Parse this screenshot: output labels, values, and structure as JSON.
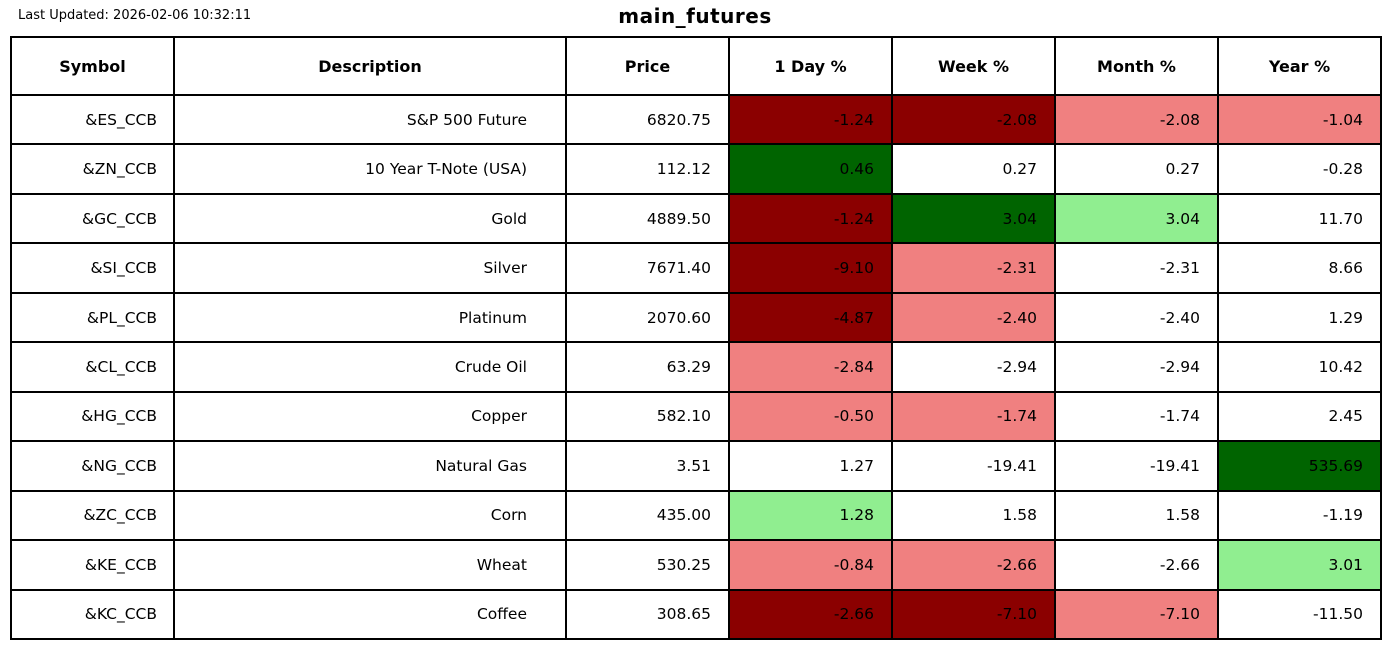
{
  "chart_data": {
    "type": "table",
    "title": "main_futures",
    "last_updated": "Last Updated: 2026-02-06 10:32:11",
    "columns": [
      "Symbol",
      "Description",
      "Price",
      "1 Day %",
      "Week %",
      "Month %",
      "Year %"
    ],
    "colors": {
      "strong_negative": "#8B0000",
      "mild_negative": "#F08080",
      "neutral": "#FFFFFF",
      "mild_positive": "#90EE90",
      "strong_positive": "#006400"
    },
    "rows": [
      {
        "symbol": "&ES_CCB",
        "description": "S&P 500 Future",
        "price": "6820.75",
        "pcts": [
          {
            "v": "-1.24",
            "c": "strong_negative"
          },
          {
            "v": "-2.08",
            "c": "strong_negative"
          },
          {
            "v": "-2.08",
            "c": "mild_negative"
          },
          {
            "v": "-1.04",
            "c": "mild_negative"
          }
        ]
      },
      {
        "symbol": "&ZN_CCB",
        "description": "10 Year T-Note (USA)",
        "price": "112.12",
        "pcts": [
          {
            "v": "0.46",
            "c": "strong_positive"
          },
          {
            "v": "0.27",
            "c": "neutral"
          },
          {
            "v": "0.27",
            "c": "neutral"
          },
          {
            "v": "-0.28",
            "c": "neutral"
          }
        ]
      },
      {
        "symbol": "&GC_CCB",
        "description": "Gold",
        "price": "4889.50",
        "pcts": [
          {
            "v": "-1.24",
            "c": "strong_negative"
          },
          {
            "v": "3.04",
            "c": "strong_positive"
          },
          {
            "v": "3.04",
            "c": "mild_positive"
          },
          {
            "v": "11.70",
            "c": "neutral"
          }
        ]
      },
      {
        "symbol": "&SI_CCB",
        "description": "Silver",
        "price": "7671.40",
        "pcts": [
          {
            "v": "-9.10",
            "c": "strong_negative"
          },
          {
            "v": "-2.31",
            "c": "mild_negative"
          },
          {
            "v": "-2.31",
            "c": "neutral"
          },
          {
            "v": "8.66",
            "c": "neutral"
          }
        ]
      },
      {
        "symbol": "&PL_CCB",
        "description": "Platinum",
        "price": "2070.60",
        "pcts": [
          {
            "v": "-4.87",
            "c": "strong_negative"
          },
          {
            "v": "-2.40",
            "c": "mild_negative"
          },
          {
            "v": "-2.40",
            "c": "neutral"
          },
          {
            "v": "1.29",
            "c": "neutral"
          }
        ]
      },
      {
        "symbol": "&CL_CCB",
        "description": "Crude Oil",
        "price": "63.29",
        "pcts": [
          {
            "v": "-2.84",
            "c": "mild_negative"
          },
          {
            "v": "-2.94",
            "c": "neutral"
          },
          {
            "v": "-2.94",
            "c": "neutral"
          },
          {
            "v": "10.42",
            "c": "neutral"
          }
        ]
      },
      {
        "symbol": "&HG_CCB",
        "description": "Copper",
        "price": "582.10",
        "pcts": [
          {
            "v": "-0.50",
            "c": "mild_negative"
          },
          {
            "v": "-1.74",
            "c": "mild_negative"
          },
          {
            "v": "-1.74",
            "c": "neutral"
          },
          {
            "v": "2.45",
            "c": "neutral"
          }
        ]
      },
      {
        "symbol": "&NG_CCB",
        "description": "Natural Gas",
        "price": "3.51",
        "pcts": [
          {
            "v": "1.27",
            "c": "neutral"
          },
          {
            "v": "-19.41",
            "c": "neutral"
          },
          {
            "v": "-19.41",
            "c": "neutral"
          },
          {
            "v": "535.69",
            "c": "strong_positive"
          }
        ]
      },
      {
        "symbol": "&ZC_CCB",
        "description": "Corn",
        "price": "435.00",
        "pcts": [
          {
            "v": "1.28",
            "c": "mild_positive"
          },
          {
            "v": "1.58",
            "c": "neutral"
          },
          {
            "v": "1.58",
            "c": "neutral"
          },
          {
            "v": "-1.19",
            "c": "neutral"
          }
        ]
      },
      {
        "symbol": "&KE_CCB",
        "description": "Wheat",
        "price": "530.25",
        "pcts": [
          {
            "v": "-0.84",
            "c": "mild_negative"
          },
          {
            "v": "-2.66",
            "c": "mild_negative"
          },
          {
            "v": "-2.66",
            "c": "neutral"
          },
          {
            "v": "3.01",
            "c": "mild_positive"
          }
        ]
      },
      {
        "symbol": "&KC_CCB",
        "description": "Coffee",
        "price": "308.65",
        "pcts": [
          {
            "v": "-2.66",
            "c": "strong_negative"
          },
          {
            "v": "-7.10",
            "c": "strong_negative"
          },
          {
            "v": "-7.10",
            "c": "mild_negative"
          },
          {
            "v": "-11.50",
            "c": "neutral"
          }
        ]
      }
    ]
  }
}
